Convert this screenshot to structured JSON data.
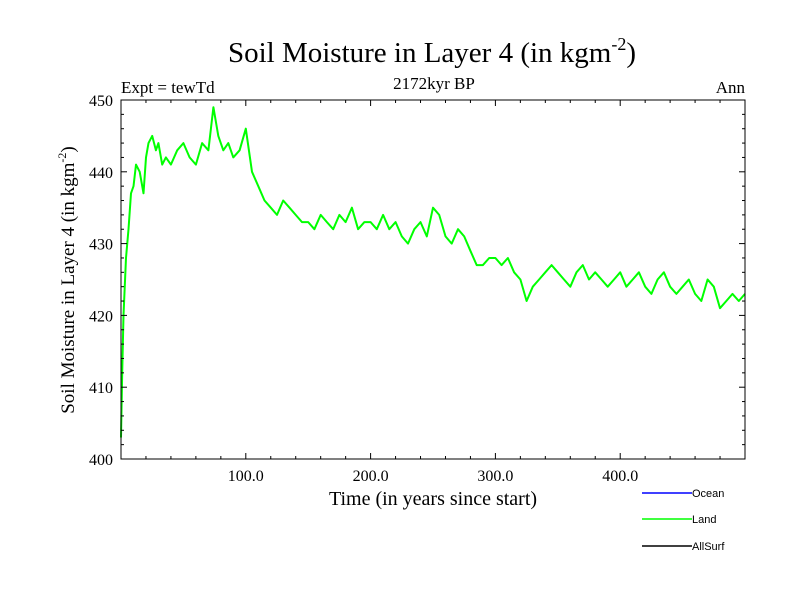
{
  "chart_data": {
    "type": "line",
    "title_main": "Soil Moisture in Layer 4 (in kgm",
    "title_sup": "-2",
    "title_close": ")",
    "subtitle": "2172kyr BP",
    "left_label": "Expt = tewTd",
    "right_label": "Ann",
    "xlabel": "Time (in years since start)",
    "ylabel_main": "Soil Moisture in Layer 4 (in kgm",
    "ylabel_sup": "-2",
    "ylabel_close": ")",
    "xlim": [
      0,
      500
    ],
    "ylim": [
      400,
      450
    ],
    "x_ticks": [
      {
        "value": 100,
        "label": "100.0"
      },
      {
        "value": 200,
        "label": "200.0"
      },
      {
        "value": 300,
        "label": "300.0"
      },
      {
        "value": 400,
        "label": "400.0"
      }
    ],
    "y_ticks": [
      {
        "value": 400,
        "label": "400"
      },
      {
        "value": 410,
        "label": "410"
      },
      {
        "value": 420,
        "label": "420"
      },
      {
        "value": 430,
        "label": "430"
      },
      {
        "value": 440,
        "label": "440"
      },
      {
        "value": 450,
        "label": "450"
      }
    ],
    "legend": [
      {
        "name": "Ocean",
        "color": "#0000ff"
      },
      {
        "name": "Land",
        "color": "#00ff00"
      },
      {
        "name": "AllSurf",
        "color": "#000000"
      }
    ],
    "series": [
      {
        "name": "Land",
        "color": "#00ff00",
        "x": [
          0,
          1,
          2,
          4,
          6,
          8,
          10,
          12,
          15,
          18,
          20,
          22,
          25,
          28,
          30,
          33,
          36,
          40,
          45,
          50,
          55,
          60,
          65,
          70,
          74,
          78,
          82,
          86,
          90,
          95,
          100,
          105,
          110,
          115,
          120,
          125,
          130,
          135,
          140,
          145,
          150,
          155,
          160,
          165,
          170,
          175,
          180,
          185,
          190,
          195,
          200,
          205,
          210,
          215,
          220,
          225,
          230,
          235,
          240,
          245,
          250,
          255,
          260,
          265,
          270,
          275,
          280,
          285,
          290,
          295,
          300,
          305,
          310,
          315,
          320,
          325,
          330,
          335,
          340,
          345,
          350,
          355,
          360,
          365,
          370,
          375,
          380,
          385,
          390,
          395,
          400,
          405,
          410,
          415,
          420,
          425,
          430,
          435,
          440,
          445,
          450,
          455,
          460,
          465,
          470,
          475,
          480,
          485,
          490,
          495,
          500
        ],
        "values": [
          403,
          412,
          420,
          428,
          432,
          437,
          438,
          441,
          440,
          437,
          442,
          444,
          445,
          443,
          444,
          441,
          442,
          441,
          443,
          444,
          442,
          441,
          444,
          443,
          449,
          445,
          443,
          444,
          442,
          443,
          446,
          440,
          438,
          436,
          435,
          434,
          436,
          435,
          434,
          433,
          433,
          432,
          434,
          433,
          432,
          434,
          433,
          435,
          432,
          433,
          433,
          432,
          434,
          432,
          433,
          431,
          430,
          432,
          433,
          431,
          435,
          434,
          431,
          430,
          432,
          431,
          429,
          427,
          427,
          428,
          428,
          427,
          428,
          426,
          425,
          422,
          424,
          425,
          426,
          427,
          426,
          425,
          424,
          426,
          427,
          425,
          426,
          425,
          424,
          425,
          426,
          424,
          425,
          426,
          424,
          423,
          425,
          426,
          424,
          423,
          424,
          425,
          423,
          422,
          425,
          424,
          421,
          422,
          423,
          422,
          423
        ]
      }
    ]
  }
}
